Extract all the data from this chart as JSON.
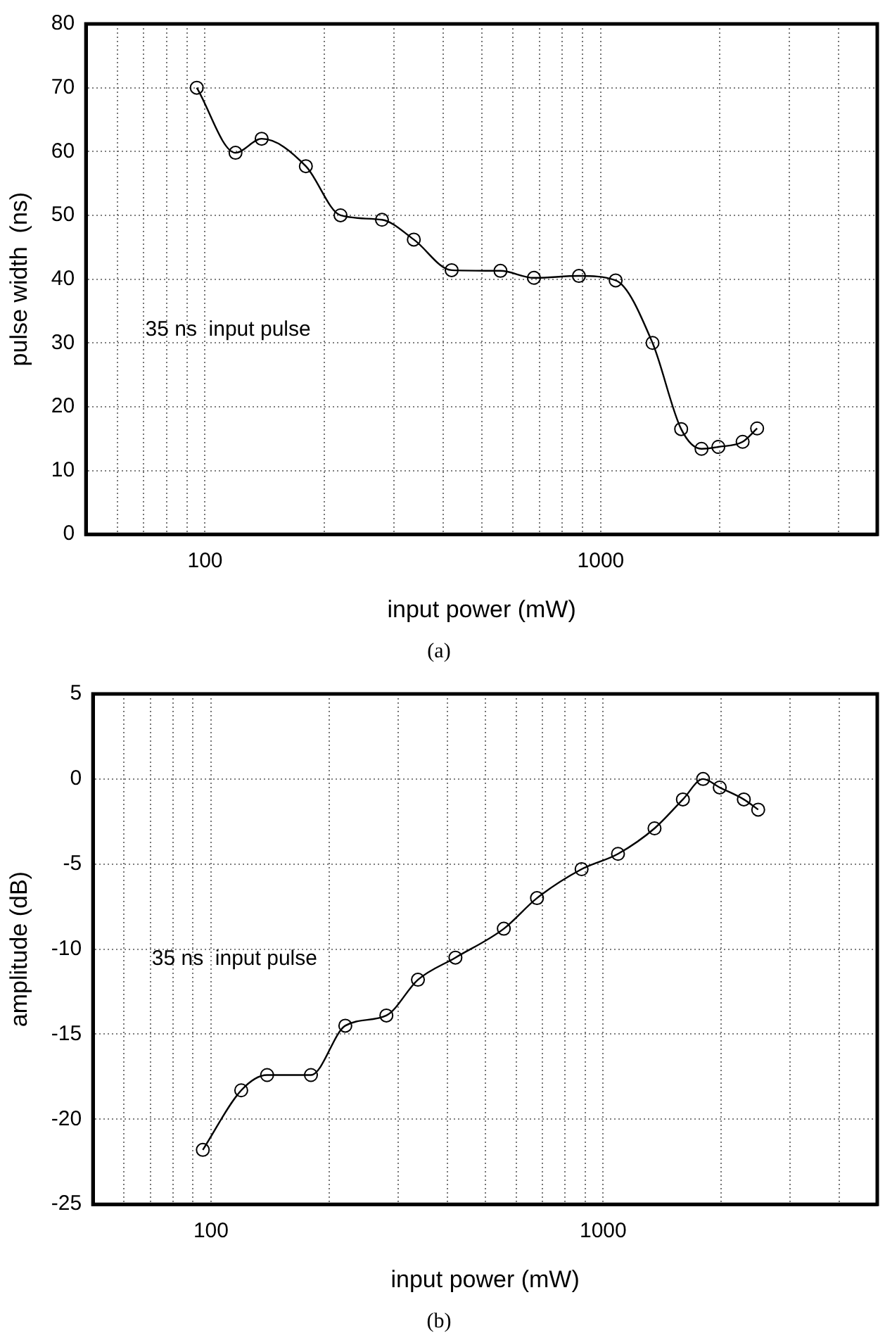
{
  "chart_data": [
    {
      "type": "line",
      "title": "(a)",
      "xlabel": "input power (mW)",
      "ylabel": "pulse width  (ns)",
      "annotations": [
        "35 ns  input pulse"
      ],
      "x": [
        95.3,
        119.4,
        139,
        179.8,
        220,
        280,
        337,
        420,
        558,
        678,
        881,
        1091,
        1352,
        1597,
        1798,
        1983,
        2284,
        2485
      ],
      "values": [
        70.0,
        59.8,
        62,
        57.7,
        50,
        49.3,
        46.2,
        41.4,
        41.3,
        40.2,
        40.5,
        39.8,
        30,
        16.5,
        13.4,
        13.7,
        14.5,
        16.6
      ],
      "color": "#000000",
      "marker": "circle",
      "line_style": "solid",
      "log": "x",
      "grid": true,
      "xlim": [
        50,
        5000
      ],
      "xticks": [
        {
          "value": 60,
          "label": null
        },
        {
          "value": 70,
          "label": null
        },
        {
          "value": 80,
          "label": null
        },
        {
          "value": 90,
          "label": null
        },
        {
          "value": 100,
          "label": "100"
        },
        {
          "value": 200,
          "label": null
        },
        {
          "value": 300,
          "label": null
        },
        {
          "value": 400,
          "label": null
        },
        {
          "value": 500,
          "label": null
        },
        {
          "value": 600,
          "label": null
        },
        {
          "value": 700,
          "label": null
        },
        {
          "value": 800,
          "label": null
        },
        {
          "value": 900,
          "label": null
        },
        {
          "value": 1000,
          "label": "1000"
        },
        {
          "value": 2000,
          "label": null
        },
        {
          "value": 3000,
          "label": null
        },
        {
          "value": 4000,
          "label": null
        }
      ],
      "ylim": [
        0,
        80
      ],
      "yticks": [
        0,
        10,
        20,
        30,
        40,
        50,
        60,
        70,
        80
      ]
    },
    {
      "type": "line",
      "title": "(b)",
      "xlabel": "input power (mW)",
      "ylabel": "amplitude (dB)",
      "annotations": [
        "35 ns  input pulse"
      ],
      "x": [
        95.3,
        119.4,
        139,
        179.8,
        220,
        280,
        337,
        420,
        558,
        678,
        881,
        1091,
        1352,
        1597,
        1798,
        1983,
        2284,
        2485
      ],
      "values": [
        -21.8,
        -18.3,
        -17.4,
        -17.4,
        -14.5,
        -13.9,
        -11.8,
        -10.5,
        -8.8,
        -7.0,
        -5.3,
        -4.4,
        -2.9,
        -1.2,
        0,
        -0.5,
        -1.2,
        -1.8
      ],
      "color": "#000000",
      "marker": "circle",
      "line_style": "solid",
      "log": "x",
      "grid": true,
      "xlim": [
        50,
        5000
      ],
      "xticks": [
        {
          "value": 60,
          "label": null
        },
        {
          "value": 70,
          "label": null
        },
        {
          "value": 80,
          "label": null
        },
        {
          "value": 90,
          "label": null
        },
        {
          "value": 100,
          "label": "100"
        },
        {
          "value": 200,
          "label": null
        },
        {
          "value": 300,
          "label": null
        },
        {
          "value": 400,
          "label": null
        },
        {
          "value": 500,
          "label": null
        },
        {
          "value": 600,
          "label": null
        },
        {
          "value": 700,
          "label": null
        },
        {
          "value": 800,
          "label": null
        },
        {
          "value": 900,
          "label": null
        },
        {
          "value": 1000,
          "label": "1000"
        },
        {
          "value": 2000,
          "label": null
        },
        {
          "value": 3000,
          "label": null
        },
        {
          "value": 4000,
          "label": null
        }
      ],
      "ylim": [
        -25,
        5
      ],
      "yticks": [
        -25,
        -20,
        -15,
        -10,
        -5,
        0,
        5
      ]
    }
  ]
}
